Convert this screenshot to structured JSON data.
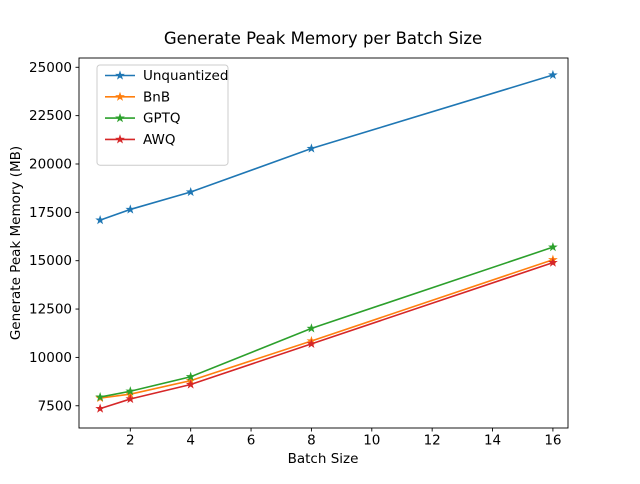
{
  "figure": {
    "background": "#ffffff"
  },
  "chart_data": {
    "type": "line",
    "title": "Generate Peak Memory per Batch Size",
    "xlabel": "Batch Size",
    "ylabel": "Generate Peak Memory (MB)",
    "x": [
      1,
      2,
      4,
      8,
      16
    ],
    "series": [
      {
        "name": "Unquantized",
        "color": "#1f77b4",
        "values": [
          17100,
          17650,
          18550,
          20800,
          24600
        ]
      },
      {
        "name": "BnB",
        "color": "#ff7f0e",
        "values": [
          7900,
          8100,
          8800,
          10850,
          15050
        ]
      },
      {
        "name": "GPTQ",
        "color": "#2ca02c",
        "values": [
          7950,
          8250,
          9000,
          11500,
          15700
        ]
      },
      {
        "name": "AWQ",
        "color": "#d62728",
        "values": [
          7350,
          7850,
          8600,
          10700,
          14900
        ]
      }
    ],
    "marker": "star",
    "line_width": 1.6,
    "xlim": [
      0.3,
      16.5
    ],
    "ylim": [
      6350,
      25480
    ],
    "xticks": [
      2,
      4,
      6,
      8,
      10,
      12,
      14,
      16
    ],
    "yticks": [
      7500,
      10000,
      12500,
      15000,
      17500,
      20000,
      22500,
      25000
    ],
    "grid": false,
    "legend_position": "upper left",
    "axis_color": "#000000",
    "spine_width": 0.9,
    "legend_border_color": "#cccccc"
  }
}
